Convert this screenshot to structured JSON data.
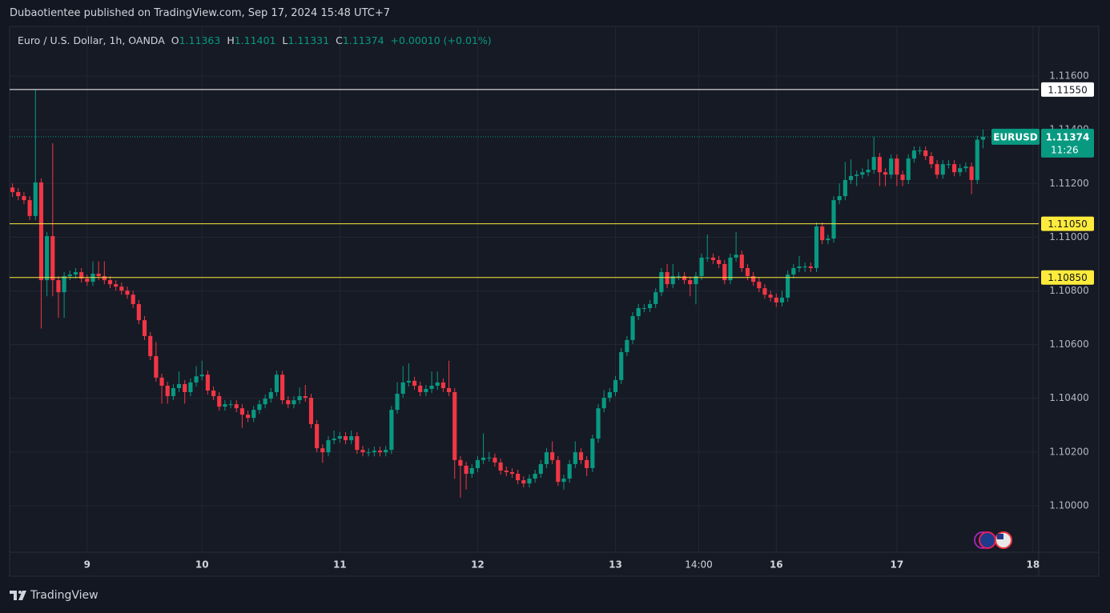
{
  "header": "Dubaotientee published on TradingView.com, Sep 17, 2024 15:48 UTC+7",
  "footer": "TradingView",
  "chart_data": {
    "type": "candlestick",
    "title": "Euro / U.S. Dollar, 1h, OANDA",
    "ohlc_letters": [
      "O",
      "H",
      "L",
      "C"
    ],
    "change": "+0.00010 (+0.01%)",
    "symbol": "EURUSD",
    "countdown": "11:26",
    "up_color": "#089981",
    "down_color": "#f23645",
    "grid": true,
    "xlim": [
      -0.5,
      178.7
    ],
    "xticks": [
      {
        "value": 13,
        "label": "9"
      },
      {
        "value": 33,
        "label": "10"
      },
      {
        "value": 57,
        "label": "11"
      },
      {
        "value": 81,
        "label": "12"
      },
      {
        "value": 105,
        "label": "13"
      },
      {
        "value": 119.5,
        "label": "14:00"
      },
      {
        "value": 133,
        "label": "16"
      },
      {
        "value": 154,
        "label": "17"
      },
      {
        "value": 177.7,
        "label": "18"
      }
    ],
    "ylim": [
      1.09827,
      1.11785
    ],
    "yticks": [
      {
        "value": 1.116,
        "label": "1.11600"
      },
      {
        "value": 1.114,
        "label": "1.11400"
      },
      {
        "value": 1.112,
        "label": "1.11200"
      },
      {
        "value": 1.11,
        "label": "1.11000"
      },
      {
        "value": 1.108,
        "label": "1.10800"
      },
      {
        "value": 1.106,
        "label": "1.10600"
      },
      {
        "value": 1.104,
        "label": "1.10400"
      },
      {
        "value": 1.102,
        "label": "1.10200"
      },
      {
        "value": 1.1,
        "label": "1.10000"
      }
    ],
    "levels": [
      {
        "value": 1.1155,
        "label": "1.11550",
        "color": "#ffffff"
      },
      {
        "value": 1.1105,
        "label": "1.11050",
        "color": "#ffeb3b"
      },
      {
        "value": 1.1085,
        "label": "1.10850",
        "color": "#ffeb3b"
      }
    ],
    "candles": {
      "open": [
        1.11185,
        1.11168,
        1.11153,
        1.11138,
        1.11079,
        1.11204,
        1.1084,
        1.11004,
        1.1084,
        1.10795,
        1.10855,
        1.10861,
        1.1087,
        1.10846,
        1.10834,
        1.10864,
        1.10855,
        1.1084,
        1.10825,
        1.10816,
        1.10801,
        1.10786,
        1.10751,
        1.10691,
        1.10632,
        1.10557,
        1.10477,
        1.10447,
        1.10408,
        1.10438,
        1.10453,
        1.10423,
        1.10459,
        1.10482,
        1.10488,
        1.10429,
        1.10408,
        1.10369,
        1.10378,
        1.10378,
        1.10363,
        1.10339,
        1.10327,
        1.10357,
        1.10378,
        1.10399,
        1.10423,
        1.10488,
        1.10393,
        1.10378,
        1.10393,
        1.10408,
        1.10402,
        1.10304,
        1.10214,
        1.10199,
        1.10244,
        1.1025,
        1.10259,
        1.10244,
        1.10259,
        1.10208,
        1.10199,
        1.10199,
        1.10205,
        1.10199,
        1.10208,
        1.10357,
        1.10417,
        1.10459,
        1.10465,
        1.10447,
        1.10423,
        1.10435,
        1.10447,
        1.10459,
        1.10438,
        1.10423,
        1.1017,
        1.10149,
        1.10119,
        1.1014,
        1.1017,
        1.10179,
        1.10179,
        1.10161,
        1.10131,
        1.10125,
        1.10119,
        1.10095,
        1.10083,
        1.10101,
        1.10119,
        1.10155,
        1.10199,
        1.1017,
        1.10089,
        1.10101,
        1.10155,
        1.10199,
        1.1017,
        1.1014,
        1.1025,
        1.10363,
        1.10402,
        1.10423,
        1.10468,
        1.10572,
        1.10617,
        1.10706,
        1.10736,
        1.10736,
        1.10751,
        1.10795,
        1.1087,
        1.10825,
        1.10855,
        1.10855,
        1.1084,
        1.10825,
        1.10855,
        1.10924,
        1.10924,
        1.10915,
        1.109,
        1.1084,
        1.10924,
        1.10935,
        1.10885,
        1.10855,
        1.10834,
        1.1081,
        1.10786,
        1.10775,
        1.10757,
        1.10775,
        1.10861,
        1.10885,
        1.10891,
        1.10891,
        1.10885,
        1.1104,
        1.10989,
        1.10995,
        1.11138,
        1.11153,
        1.11213,
        1.11228,
        1.11233,
        1.11242,
        1.11251,
        1.11299,
        1.11242,
        1.11233,
        1.11293,
        1.11233,
        1.11213,
        1.11293,
        1.11323,
        1.11323,
        1.11302,
        1.11272,
        1.11233,
        1.11272,
        1.11272,
        1.11242,
        1.11257,
        1.11263,
        1.11213,
        1.11363
      ],
      "high": [
        1.112,
        1.11183,
        1.11168,
        1.11153,
        1.1155,
        1.11219,
        1.11019,
        1.1135,
        1.10855,
        1.1087,
        1.10876,
        1.10885,
        1.10885,
        1.10861,
        1.1091,
        1.1091,
        1.1091,
        1.10855,
        1.1084,
        1.10831,
        1.10816,
        1.10801,
        1.10766,
        1.10706,
        1.10647,
        1.1061,
        1.10492,
        1.10462,
        1.10453,
        1.105,
        1.10468,
        1.10474,
        1.1052,
        1.1054,
        1.10503,
        1.10444,
        1.10423,
        1.10393,
        1.10393,
        1.10393,
        1.10378,
        1.10354,
        1.10372,
        1.10393,
        1.10414,
        1.10438,
        1.10503,
        1.10503,
        1.10408,
        1.10408,
        1.1044,
        1.1045,
        1.10417,
        1.10319,
        1.10229,
        1.10259,
        1.1028,
        1.10274,
        1.10274,
        1.1028,
        1.10274,
        1.10223,
        1.10214,
        1.1022,
        1.1022,
        1.10223,
        1.10372,
        1.1046,
        1.1052,
        1.1053,
        1.1048,
        1.10462,
        1.1045,
        1.105,
        1.105,
        1.10474,
        1.1054,
        1.10438,
        1.10185,
        1.10164,
        1.10155,
        1.10185,
        1.1027,
        1.102,
        1.10194,
        1.10176,
        1.10146,
        1.1014,
        1.10134,
        1.1011,
        1.10116,
        1.10134,
        1.1017,
        1.10214,
        1.1024,
        1.10185,
        1.10116,
        1.1017,
        1.1024,
        1.10214,
        1.10185,
        1.10265,
        1.10378,
        1.1043,
        1.10438,
        1.10483,
        1.10587,
        1.10632,
        1.10721,
        1.10751,
        1.10751,
        1.10766,
        1.1081,
        1.10885,
        1.109,
        1.109,
        1.1087,
        1.1087,
        1.10855,
        1.1087,
        1.10939,
        1.1101,
        1.10939,
        1.1093,
        1.10915,
        1.10939,
        1.1102,
        1.1095,
        1.109,
        1.1087,
        1.10849,
        1.10825,
        1.10801,
        1.1079,
        1.108,
        1.10876,
        1.109,
        1.1093,
        1.10906,
        1.10906,
        1.11055,
        1.11055,
        1.1101,
        1.11153,
        1.112,
        1.1128,
        1.1129,
        1.11248,
        1.11257,
        1.1129,
        1.11374,
        1.11314,
        1.11257,
        1.11308,
        1.11308,
        1.11248,
        1.11308,
        1.11338,
        1.11338,
        1.11338,
        1.11317,
        1.11287,
        1.11287,
        1.11287,
        1.11287,
        1.11272,
        1.11278,
        1.11278,
        1.11378,
        1.11401
      ],
      "low": [
        1.1115,
        1.11138,
        1.11123,
        1.11064,
        1.11064,
        1.1066,
        1.1078,
        1.1078,
        1.107,
        1.107,
        1.1084,
        1.10846,
        1.10831,
        1.10819,
        1.10819,
        1.1084,
        1.10825,
        1.1081,
        1.10801,
        1.10786,
        1.10771,
        1.10736,
        1.10676,
        1.10617,
        1.10542,
        1.10462,
        1.1038,
        1.1038,
        1.10393,
        1.10423,
        1.1038,
        1.10408,
        1.10444,
        1.10467,
        1.10414,
        1.10393,
        1.10354,
        1.10354,
        1.10363,
        1.10348,
        1.1029,
        1.10312,
        1.10312,
        1.10342,
        1.10363,
        1.10384,
        1.10408,
        1.10378,
        1.10363,
        1.10363,
        1.10378,
        1.10387,
        1.10289,
        1.10199,
        1.1016,
        1.10184,
        1.10229,
        1.10235,
        1.10229,
        1.10229,
        1.10193,
        1.10184,
        1.10184,
        1.10184,
        1.10184,
        1.10184,
        1.10193,
        1.10342,
        1.10402,
        1.10444,
        1.10432,
        1.10408,
        1.10408,
        1.1042,
        1.10432,
        1.10423,
        1.10408,
        1.101,
        1.1003,
        1.1006,
        1.10104,
        1.10125,
        1.10155,
        1.10164,
        1.10146,
        1.10116,
        1.1011,
        1.10104,
        1.1008,
        1.10068,
        1.10068,
        1.10086,
        1.10104,
        1.1014,
        1.10155,
        1.10074,
        1.1006,
        1.10086,
        1.1014,
        1.10155,
        1.1011,
        1.10125,
        1.10235,
        1.10348,
        1.10387,
        1.10408,
        1.10453,
        1.10557,
        1.10602,
        1.10691,
        1.10721,
        1.10721,
        1.10736,
        1.1078,
        1.1081,
        1.1081,
        1.1084,
        1.10825,
        1.1078,
        1.1075,
        1.1084,
        1.10909,
        1.109,
        1.10885,
        1.10825,
        1.10825,
        1.10909,
        1.1087,
        1.1084,
        1.10819,
        1.10795,
        1.10771,
        1.1076,
        1.1074,
        1.10742,
        1.1076,
        1.10846,
        1.1087,
        1.1087,
        1.1087,
        1.1087,
        1.10974,
        1.10974,
        1.1098,
        1.11123,
        1.11138,
        1.11198,
        1.1119,
        1.11218,
        1.11227,
        1.11236,
        1.1119,
        1.1119,
        1.11218,
        1.1119,
        1.1119,
        1.11198,
        1.11278,
        1.11308,
        1.11287,
        1.11257,
        1.11218,
        1.11218,
        1.11257,
        1.11227,
        1.11227,
        1.11242,
        1.1116,
        1.11198,
        1.11331
      ],
      "close": [
        1.11168,
        1.11153,
        1.11138,
        1.11079,
        1.11204,
        1.1084,
        1.11004,
        1.1084,
        1.10795,
        1.10855,
        1.10861,
        1.1087,
        1.10846,
        1.10834,
        1.10864,
        1.10855,
        1.1084,
        1.10825,
        1.10816,
        1.10801,
        1.10786,
        1.10751,
        1.10691,
        1.10632,
        1.10557,
        1.10477,
        1.10447,
        1.10408,
        1.10438,
        1.10453,
        1.10423,
        1.10459,
        1.10482,
        1.10488,
        1.10429,
        1.10408,
        1.10369,
        1.10378,
        1.10378,
        1.10363,
        1.10339,
        1.10327,
        1.10357,
        1.10378,
        1.10399,
        1.10423,
        1.10488,
        1.10393,
        1.10378,
        1.10393,
        1.10408,
        1.10402,
        1.10304,
        1.10214,
        1.10199,
        1.10244,
        1.1025,
        1.10259,
        1.10244,
        1.10259,
        1.10208,
        1.10199,
        1.10199,
        1.10205,
        1.10199,
        1.10208,
        1.10357,
        1.10417,
        1.10459,
        1.10465,
        1.10447,
        1.10423,
        1.10435,
        1.10447,
        1.10459,
        1.10438,
        1.10423,
        1.1017,
        1.10149,
        1.10119,
        1.1014,
        1.1017,
        1.10179,
        1.10179,
        1.10161,
        1.10131,
        1.10125,
        1.10119,
        1.10095,
        1.10083,
        1.10101,
        1.10119,
        1.10155,
        1.10199,
        1.1017,
        1.10089,
        1.10101,
        1.10155,
        1.10199,
        1.1017,
        1.1014,
        1.1025,
        1.10363,
        1.10402,
        1.10423,
        1.10468,
        1.10572,
        1.10617,
        1.10706,
        1.10736,
        1.10736,
        1.10751,
        1.10795,
        1.1087,
        1.10825,
        1.10855,
        1.10855,
        1.1084,
        1.10825,
        1.10855,
        1.10924,
        1.10924,
        1.10915,
        1.109,
        1.1084,
        1.10924,
        1.10935,
        1.10885,
        1.10855,
        1.10834,
        1.1081,
        1.10786,
        1.10775,
        1.10757,
        1.10775,
        1.10861,
        1.10885,
        1.10891,
        1.10891,
        1.10885,
        1.1104,
        1.10989,
        1.10995,
        1.11138,
        1.11153,
        1.11213,
        1.11228,
        1.11233,
        1.11242,
        1.11251,
        1.11299,
        1.11242,
        1.11233,
        1.11293,
        1.11233,
        1.11213,
        1.11293,
        1.11323,
        1.11323,
        1.11302,
        1.11272,
        1.11233,
        1.11272,
        1.11272,
        1.11242,
        1.11257,
        1.11263,
        1.11213,
        1.11363,
        1.11374
      ]
    }
  }
}
